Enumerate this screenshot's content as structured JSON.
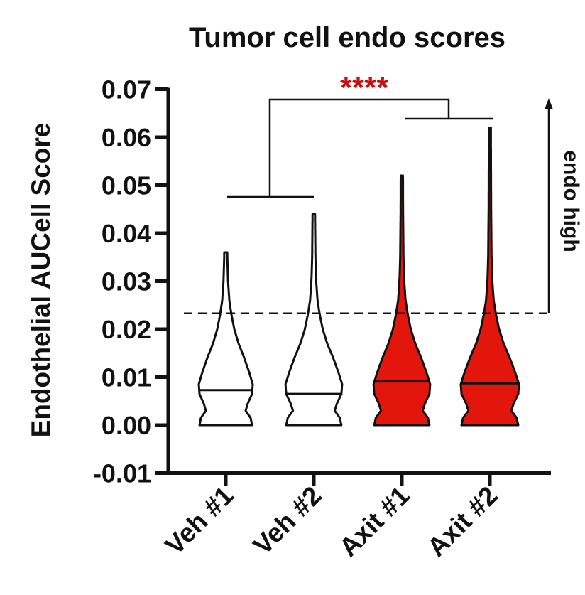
{
  "chart_data": {
    "type": "violin",
    "title": "Tumor cell endo scores",
    "ylabel": "Endothelial AUCell Score",
    "xlabel": "",
    "ylim": [
      -0.01,
      0.07
    ],
    "yticks": [
      "0.07",
      "0.06",
      "0.05",
      "0.04",
      "0.03",
      "0.02",
      "0.01",
      "0.00",
      "-0.01"
    ],
    "ytick_values": [
      0.07,
      0.06,
      0.05,
      0.04,
      0.03,
      0.02,
      0.01,
      0.0,
      -0.01
    ],
    "categories": [
      "Veh #1",
      "Veh #2",
      "Axit #1",
      "Axit #2"
    ],
    "violins": [
      {
        "category": "Veh #1",
        "min": 0.0,
        "max": 0.036,
        "median": 0.0073,
        "fill": "#ffffff"
      },
      {
        "category": "Veh #2",
        "min": 0.0,
        "max": 0.044,
        "median": 0.0065,
        "fill": "#ffffff"
      },
      {
        "category": "Axit #1",
        "min": 0.0,
        "max": 0.052,
        "median": 0.0091,
        "fill": "#e3160c"
      },
      {
        "category": "Axit #2",
        "min": 0.0,
        "max": 0.062,
        "median": 0.0087,
        "fill": "#e3160c"
      }
    ],
    "threshold": {
      "value": 0.0233,
      "style": "dashed"
    },
    "annotation": {
      "text": "endo high",
      "arrow": "up"
    },
    "significance": {
      "text": "****",
      "color": "#cc0d0d",
      "groups": [
        [
          "Veh #1",
          "Veh #2"
        ],
        [
          "Axit #1",
          "Axit #2"
        ]
      ]
    },
    "colors": {
      "veh": "#ffffff",
      "axit": "#e3160c",
      "stroke": "#111111"
    },
    "grid": false,
    "legend": "none"
  }
}
